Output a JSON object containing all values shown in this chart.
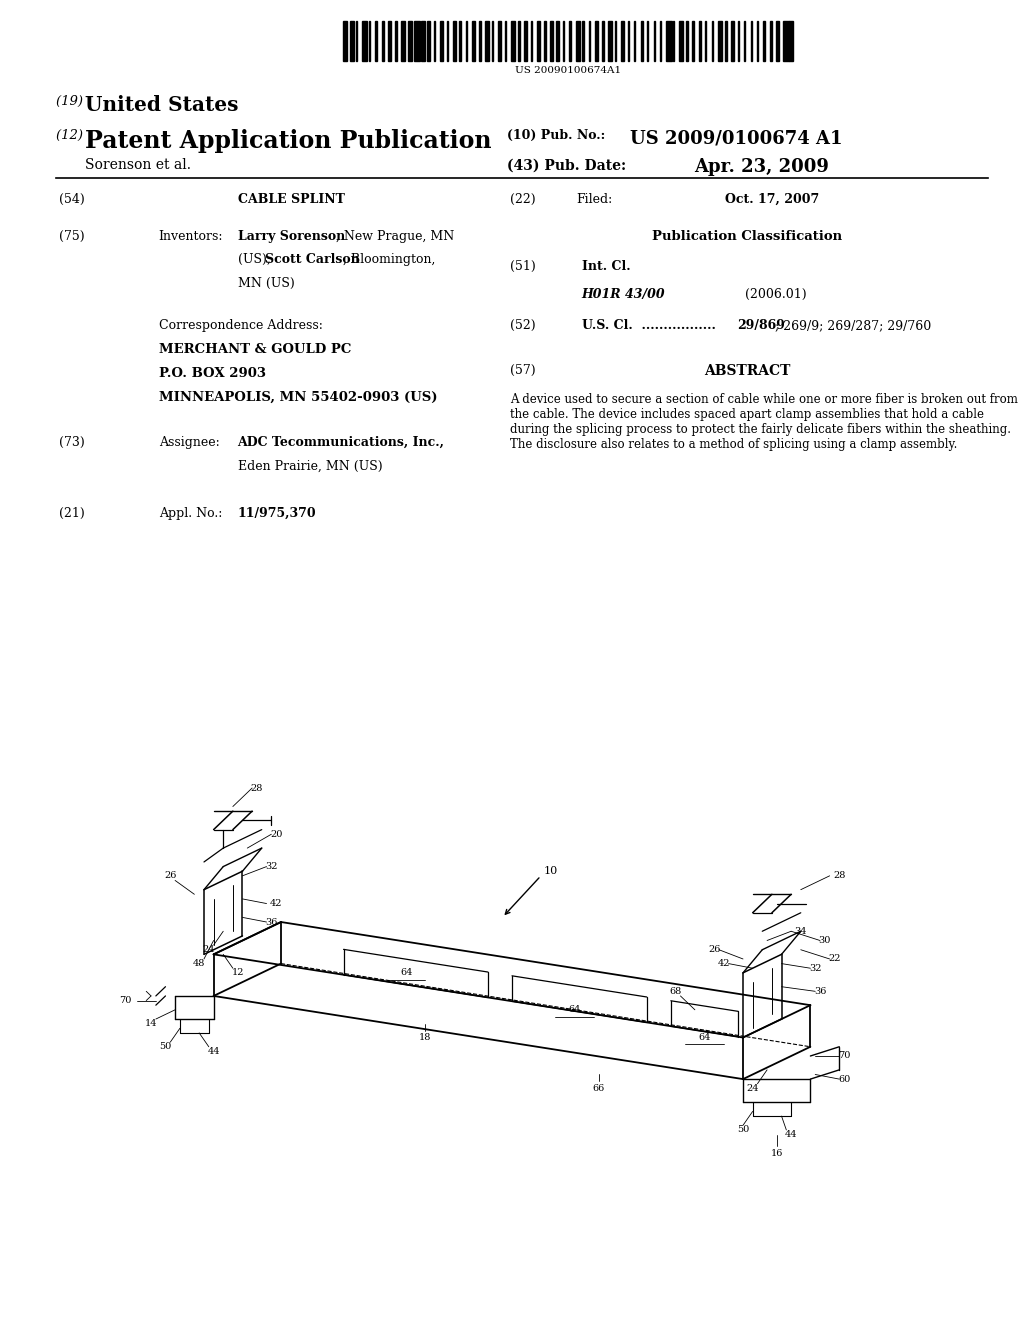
{
  "background_color": "#ffffff",
  "barcode_text": "US 20090100674A1",
  "header": {
    "country": "United States",
    "app_type": "Patent Application Publication",
    "pub_num": "US 2009/0100674 A1",
    "inventors_label": "Sorenson et al.",
    "pub_date": "Apr. 23, 2009"
  },
  "fields": {
    "title_label": "CABLE SPLINT",
    "inventors_text_bold1": "Larry Sorenson",
    "inventors_text1": ", New Prague, MN",
    "inventors_text2": "(US); ",
    "inventors_text_bold2": "Scott Carlson",
    "inventors_text3": ", Bloomington,",
    "inventors_text4": "MN (US)",
    "correspondence_line1": "Correspondence Address:",
    "correspondence_line2": "MERCHANT & GOULD PC",
    "correspondence_line3": "P.O. BOX 2903",
    "correspondence_line4": "MINNEAPOLIS, MN 55402-0903 (US)",
    "assignee_bold": "ADC Tecommunications, Inc.,",
    "assignee_normal": "Eden Prairie, MN (US)",
    "appl_no_value": "11/975,370",
    "filed_date": "Oct. 17, 2007",
    "int_cl_code": "H01R 43/00",
    "int_cl_year": "(2006.01)",
    "us_cl_dots": "U.S. Cl.  .................",
    "us_cl_bold": "29/869",
    "us_cl_normal": "; 269/9; 269/287; 29/760",
    "abstract_text": "A device used to secure a section of cable while one or more fiber is broken out from the cable. The device includes spaced apart clamp assemblies that hold a cable during the splicing process to protect the fairly delicate fibers within the sheathing. The disclosure also relates to a method of splicing using a clamp assembly."
  }
}
